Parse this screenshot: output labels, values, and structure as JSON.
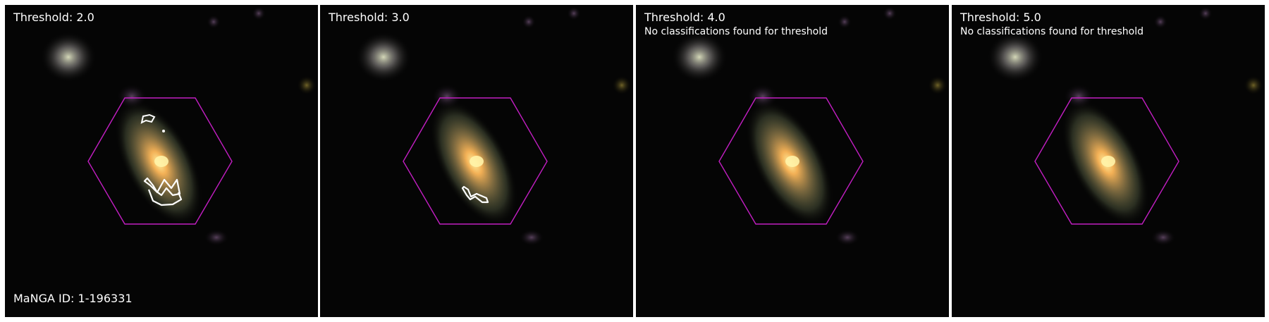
{
  "panels": [
    {
      "title": "Threshold: 2.0",
      "subtitle": "",
      "has_contours": true,
      "contour_set": "large"
    },
    {
      "title": "Threshold: 3.0",
      "subtitle": "",
      "has_contours": true,
      "contour_set": "small"
    },
    {
      "title": "Threshold: 4.0",
      "subtitle": "No classifications found for threshold",
      "has_contours": false,
      "contour_set": "none"
    },
    {
      "title": "Threshold: 5.0",
      "subtitle": "No classifications found for threshold",
      "has_contours": false,
      "contour_set": "none"
    }
  ],
  "manga_label": "MaNGA ID: 1-196331",
  "colors": {
    "hexagon": "#c21ec2",
    "contour": "#ffffff",
    "background": "#050505",
    "galaxy_core": "#ffb95a",
    "galaxy_outer": "#6f7a55"
  }
}
